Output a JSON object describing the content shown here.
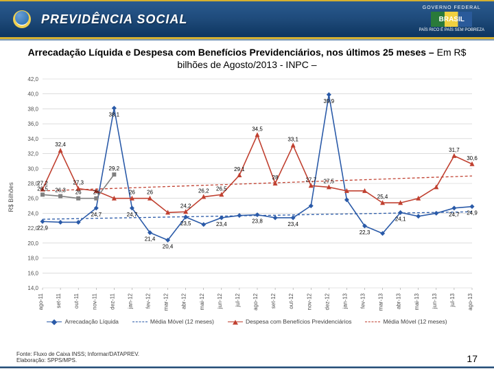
{
  "header": {
    "brand": "PREVIDÊNCIA SOCIAL",
    "gov_top": "GOVERNO FEDERAL",
    "gov_flag": "BRASIL",
    "gov_bottom": "PAÍS RICO É PAÍS SEM POBREZA"
  },
  "title_bold": "Arrecadação Líquida e Despesa com Benefícios Previdenciários, nos últimos 25 meses – ",
  "title_light": "Em R$ bilhões de Agosto/2013 - INPC –",
  "chart": {
    "type": "line",
    "ylabel": "R$ Bilhões",
    "ylim": [
      14,
      42
    ],
    "ytick_step": 2,
    "categories": [
      "ago-11",
      "set-11",
      "out-11",
      "nov-11",
      "dez-11",
      "jan-12",
      "fev-12",
      "mar-12",
      "abr-12",
      "mai-12",
      "jun-12",
      "jul-12",
      "ago-12",
      "set-12",
      "out-12",
      "nov-12",
      "dez-12",
      "jan-13",
      "fev-13",
      "mar-13",
      "abr-13",
      "mai-13",
      "jun-13",
      "jul-13",
      "ago-13"
    ],
    "plot_background": "#ffffff",
    "grid_color": "#c8c8c8",
    "axis_text_color": "#505050",
    "axis_fontsize": 8,
    "series": [
      {
        "name": "Arrecadação Líquida",
        "color": "#2a5aa8",
        "marker": "diamond",
        "values": [
          22.9,
          22.8,
          22.8,
          24.7,
          38.1,
          24.7,
          21.4,
          20.4,
          23.5,
          22.5,
          23.4,
          23.7,
          23.8,
          23.4,
          23.4,
          25.0,
          39.9,
          25.8,
          22.3,
          21.3,
          24.1,
          23.6,
          24.0,
          24.7,
          24.9
        ],
        "show_labels": [
          22.9,
          null,
          null,
          24.7,
          38.1,
          24.7,
          21.4,
          20.4,
          23.5,
          null,
          23.4,
          null,
          23.8,
          null,
          23.4,
          null,
          39.9,
          null,
          22.3,
          null,
          24.1,
          null,
          null,
          24.7,
          24.9
        ]
      },
      {
        "name": "Despesa com Benefícios Previdenciários",
        "color": "#c04030",
        "marker": "triangle",
        "values": [
          27.2,
          32.4,
          27.3,
          27.0,
          26.0,
          26.0,
          26.0,
          24.1,
          24.2,
          26.2,
          26.5,
          29.1,
          34.5,
          28.0,
          33.1,
          27.7,
          27.5,
          27.0,
          27.0,
          25.4,
          25.4,
          26.0,
          27.5,
          31.7,
          30.6
        ],
        "show_labels": [
          27.2,
          32.4,
          27.3,
          null,
          null,
          26.0,
          26.0,
          null,
          24.2,
          26.2,
          26.5,
          29.1,
          34.5,
          28.0,
          33.1,
          27.7,
          27.5,
          null,
          null,
          25.4,
          null,
          null,
          null,
          31.7,
          30.6
        ]
      }
    ],
    "trend_lines": [
      {
        "name": "Média Móvel (12 meses)",
        "color": "#2a5aa8",
        "from": [
          0,
          23.2
        ],
        "to": [
          24,
          24.2
        ]
      },
      {
        "name": "Média Móvel (12 meses)",
        "color": "#c04030",
        "from": [
          0,
          27.0
        ],
        "to": [
          24,
          29.0
        ]
      }
    ],
    "ma_series": {
      "name": "Média Móvel (12 meses)",
      "color": "#808080",
      "marker": "square",
      "values": [
        26.5,
        26.3,
        26.0,
        26.0,
        29.2,
        null,
        null,
        null,
        null,
        null,
        null,
        null,
        null,
        null,
        null,
        null,
        null,
        null,
        null,
        null,
        null,
        null,
        null,
        null,
        null
      ]
    }
  },
  "legend": {
    "items": [
      {
        "label": "Arrecadação Líquida",
        "color": "#2a5aa8",
        "marker": "diamond",
        "dash": false
      },
      {
        "label": "Média Móvel (12 meses)",
        "color": "#2a5aa8",
        "marker": "none",
        "dash": true
      },
      {
        "label": "Despesa com Benefícios Previdenciários",
        "color": "#c04030",
        "marker": "triangle",
        "dash": false
      },
      {
        "label": "Média Móvel (12 meses)",
        "color": "#c04030",
        "marker": "none",
        "dash": true
      }
    ]
  },
  "footer": {
    "source1": "Fonte: Fluxo de Caixa INSS; Informar/DATAPREV.",
    "source2": "Elaboração: SPPS/MPS.",
    "page": "17"
  }
}
